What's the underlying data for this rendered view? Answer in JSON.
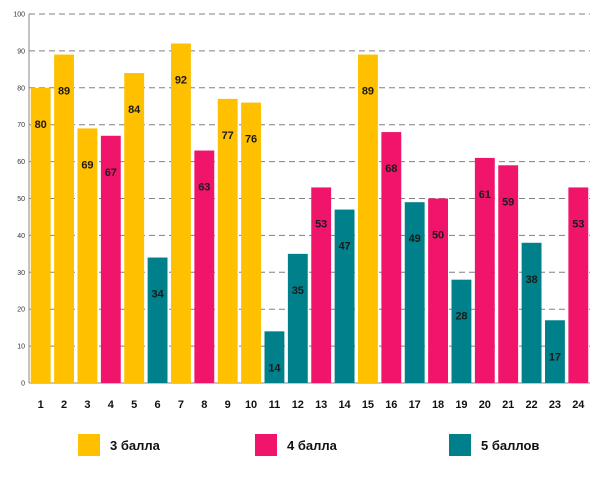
{
  "chart_data": {
    "type": "bar",
    "categories": [
      "1",
      "2",
      "3",
      "4",
      "5",
      "6",
      "7",
      "8",
      "9",
      "10",
      "11",
      "12",
      "13",
      "14",
      "15",
      "16",
      "17",
      "18",
      "19",
      "20",
      "21",
      "22",
      "23",
      "24"
    ],
    "values": [
      80,
      89,
      69,
      67,
      84,
      34,
      92,
      63,
      77,
      76,
      14,
      35,
      53,
      47,
      89,
      68,
      49,
      50,
      28,
      61,
      59,
      38,
      17,
      53
    ],
    "value_labels": [
      "80",
      "89",
      "69",
      "67",
      "84",
      "34",
      "92",
      "63",
      "77",
      "76",
      "14",
      "35",
      "53",
      "47",
      "89",
      "68",
      "49",
      "50",
      "28",
      "61",
      "59",
      "38",
      "17",
      "53"
    ],
    "groups": [
      "3 балла",
      "3 балла",
      "3 балла",
      "4 балла",
      "3 балла",
      "5 баллов",
      "3 балла",
      "4 балла",
      "3 балла",
      "3 балла",
      "5 баллов",
      "5 баллов",
      "4 балла",
      "5 баллов",
      "3 балла",
      "4 балла",
      "5 баллов",
      "4 балла",
      "5 баллов",
      "4 балла",
      "4 балла",
      "5 баллов",
      "5 баллов",
      "4 балла"
    ],
    "ylim": [
      0,
      100
    ],
    "yticks": [
      "0",
      "10",
      "20",
      "30",
      "40",
      "50",
      "60",
      "70",
      "80",
      "90",
      "100"
    ],
    "grid": true,
    "legend_position": "bottom",
    "title": "",
    "xlabel": "",
    "ylabel": ""
  },
  "legend": [
    {
      "label": "3 балла",
      "color": "#FFC000"
    },
    {
      "label": "4 балла",
      "color": "#F0146B"
    },
    {
      "label": "5 баллов",
      "color": "#00808A"
    }
  ],
  "colors": {
    "3 балла": "#FFC000",
    "4 балла": "#F0146B",
    "5 баллов": "#00808A"
  }
}
